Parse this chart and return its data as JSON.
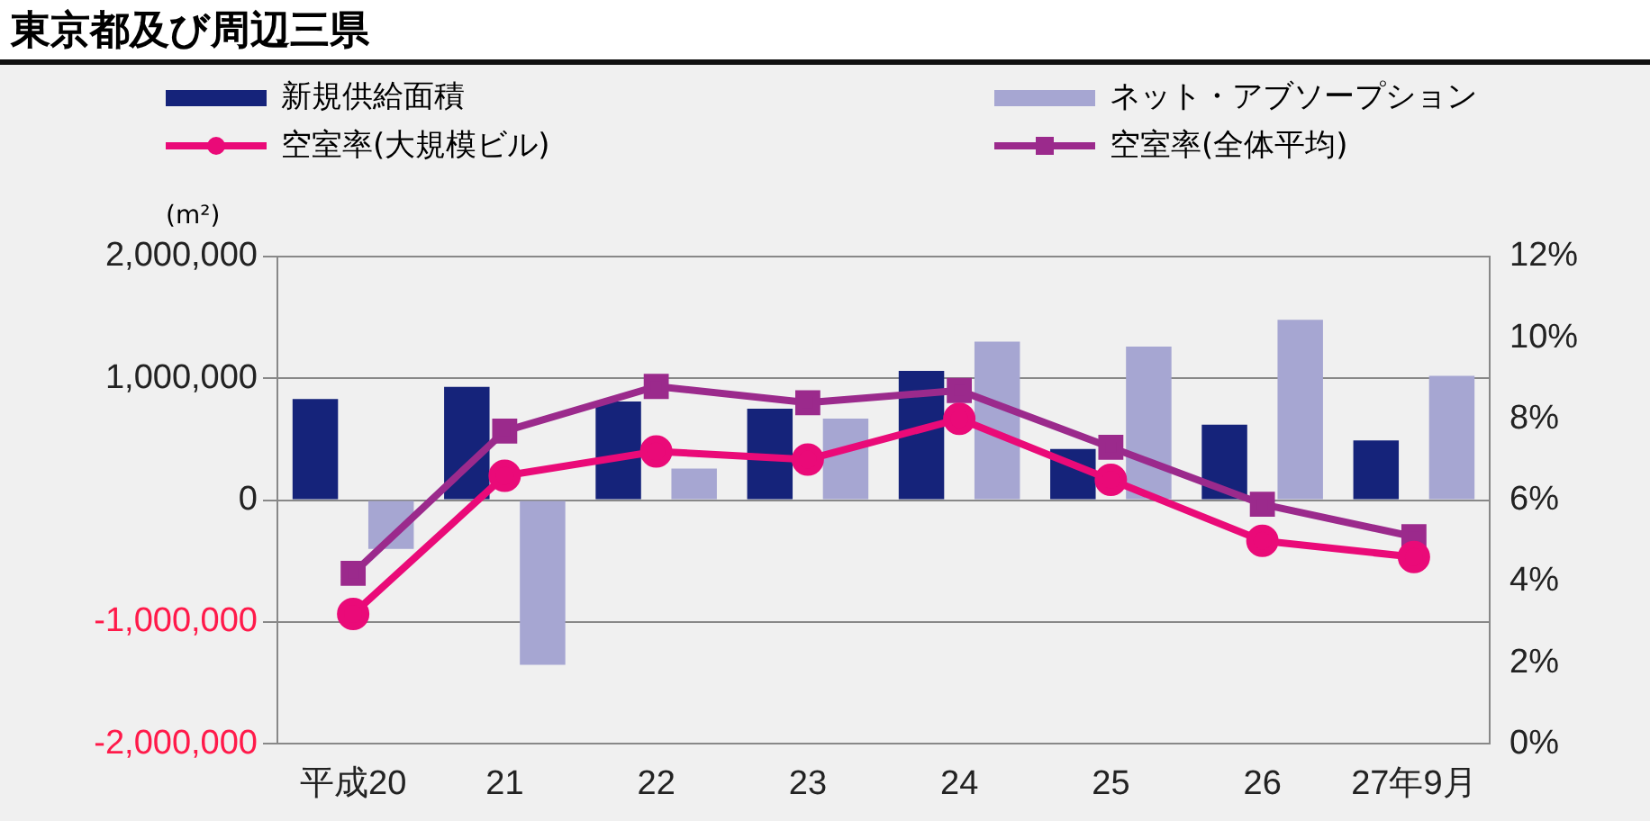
{
  "chart_data": {
    "type": "bar",
    "title": "東京都及び周辺三県",
    "ylabel": "(m²)",
    "categories": [
      "平成20",
      "21",
      "22",
      "23",
      "24",
      "25",
      "26",
      "27年9月"
    ],
    "series": [
      {
        "name": "新規供給面積",
        "color": "#15237a",
        "values": [
          830000,
          930000,
          810000,
          750000,
          1060000,
          420000,
          620000,
          490000
        ]
      },
      {
        "name": "ネット・アブソープション",
        "type": "bar",
        "color": "#a6a6d2",
        "values": [
          -400000,
          -1350000,
          260000,
          670000,
          1300000,
          1260000,
          1480000,
          1020000
        ]
      },
      {
        "name": "空室率(大規模ビル)",
        "type": "line",
        "axis": "y2",
        "marker": "circle",
        "color": "#ea0a78",
        "values": [
          3.2,
          6.6,
          7.2,
          7.0,
          8.0,
          6.5,
          5.0,
          4.6
        ]
      },
      {
        "name": "空室率(全体平均)",
        "type": "line",
        "axis": "y2",
        "marker": "square",
        "color": "#9b2a8c",
        "values": [
          4.2,
          7.7,
          8.8,
          8.4,
          8.7,
          7.3,
          5.9,
          5.1
        ]
      }
    ],
    "ylim": [
      -2000000,
      2000000
    ],
    "yticks": [
      {
        "value": -2000000,
        "label": "-2,000,000"
      },
      {
        "value": -1000000,
        "label": "-1,000,000"
      },
      {
        "value": 0,
        "label": "0"
      },
      {
        "value": 1000000,
        "label": "1,000,000"
      },
      {
        "value": 2000000,
        "label": "2,000,000"
      }
    ],
    "y2lim": [
      0,
      12
    ],
    "y2ticks": [
      {
        "value": 0,
        "label": "0%"
      },
      {
        "value": 2,
        "label": "2%"
      },
      {
        "value": 4,
        "label": "4%"
      },
      {
        "value": 6,
        "label": "6%"
      },
      {
        "value": 8,
        "label": "8%"
      },
      {
        "value": 10,
        "label": "10%"
      },
      {
        "value": 12,
        "label": "12%"
      }
    ],
    "grid": "y",
    "legend": "top",
    "line_style": "solid"
  }
}
